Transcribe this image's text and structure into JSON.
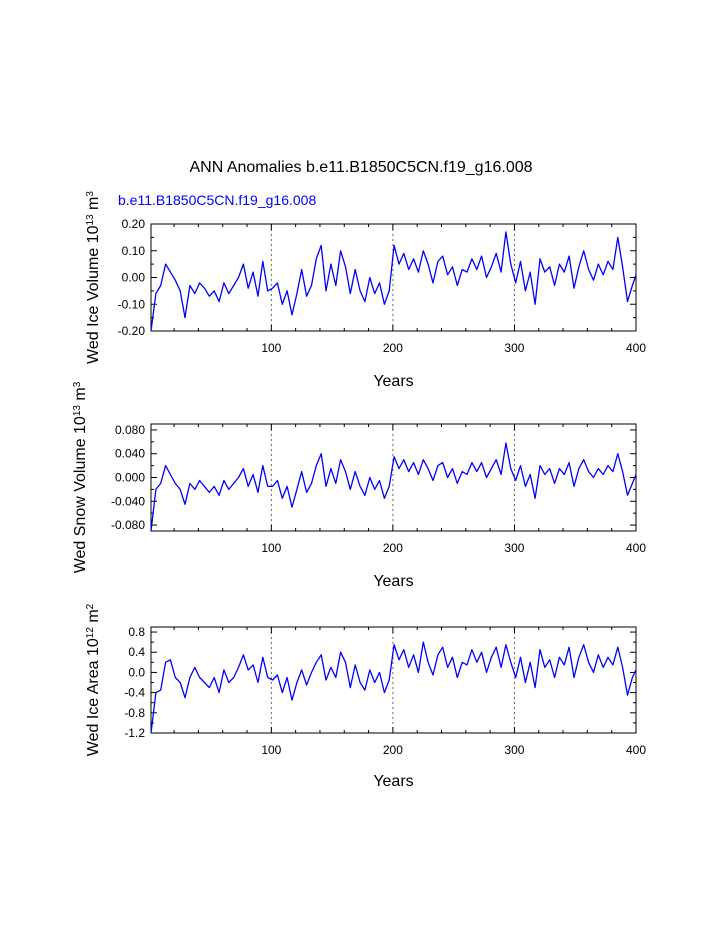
{
  "figure": {
    "title": "ANN Anomalies b.e11.B1850C5CN.f19_g16.008",
    "series_label": "b.e11.B1850C5CN.f19_g16.008",
    "series_color": "#0000ff"
  },
  "chart_data": [
    {
      "type": "line",
      "xlabel": "Years",
      "ylabel_main": "Wed Ice Volume 10",
      "ylabel_exp": "13",
      "ylabel_unit": " m",
      "ylabel_unit_exp": "3",
      "xlim": [
        1,
        400
      ],
      "ylim": [
        -0.2,
        0.2
      ],
      "x_ticks": [
        100,
        200,
        300,
        400
      ],
      "x_tick_labels": [
        "100",
        "200",
        "300",
        "400"
      ],
      "y_ticks": [
        -0.2,
        -0.1,
        0.0,
        0.1,
        0.2
      ],
      "y_tick_labels": [
        "-0.20",
        "-0.10",
        "0.00",
        "0.10",
        "0.20"
      ],
      "vlines": [
        100,
        200,
        300
      ],
      "grid": false,
      "series": [
        {
          "name": "b.e11.B1850C5CN.f19_g16.008",
          "color": "#0000ff",
          "x": [
            1,
            5,
            9,
            13,
            17,
            21,
            25,
            29,
            33,
            37,
            41,
            45,
            49,
            53,
            57,
            61,
            65,
            69,
            73,
            77,
            81,
            85,
            89,
            93,
            97,
            101,
            105,
            109,
            113,
            117,
            121,
            125,
            129,
            133,
            137,
            141,
            145,
            149,
            153,
            157,
            161,
            165,
            169,
            173,
            177,
            181,
            185,
            189,
            193,
            197,
            201,
            205,
            209,
            213,
            217,
            221,
            225,
            229,
            233,
            237,
            241,
            245,
            249,
            253,
            257,
            261,
            265,
            269,
            273,
            277,
            281,
            285,
            289,
            293,
            297,
            301,
            305,
            309,
            313,
            317,
            321,
            325,
            329,
            333,
            337,
            341,
            345,
            349,
            353,
            357,
            361,
            365,
            369,
            373,
            377,
            381,
            385,
            389,
            393,
            397,
            400
          ],
          "y": [
            -0.2,
            -0.06,
            -0.03,
            0.05,
            0.02,
            -0.01,
            -0.05,
            -0.15,
            -0.03,
            -0.06,
            -0.02,
            -0.04,
            -0.07,
            -0.05,
            -0.09,
            -0.02,
            -0.06,
            -0.03,
            0.0,
            0.05,
            -0.04,
            0.02,
            -0.07,
            0.06,
            -0.05,
            -0.04,
            -0.02,
            -0.1,
            -0.05,
            -0.14,
            -0.06,
            0.03,
            -0.07,
            -0.03,
            0.07,
            0.12,
            -0.05,
            0.05,
            -0.03,
            0.1,
            0.04,
            -0.06,
            0.03,
            -0.05,
            -0.09,
            0.0,
            -0.06,
            -0.02,
            -0.1,
            -0.05,
            0.12,
            0.05,
            0.09,
            0.03,
            0.07,
            0.02,
            0.1,
            0.05,
            -0.02,
            0.06,
            0.08,
            0.01,
            0.04,
            -0.03,
            0.03,
            0.02,
            0.07,
            0.03,
            0.08,
            0.0,
            0.04,
            0.09,
            0.02,
            0.17,
            0.05,
            -0.02,
            0.06,
            -0.05,
            0.02,
            -0.1,
            0.07,
            0.02,
            0.04,
            -0.03,
            0.05,
            0.02,
            0.08,
            -0.04,
            0.04,
            0.1,
            0.03,
            -0.01,
            0.05,
            0.01,
            0.06,
            0.03,
            0.15,
            0.04,
            -0.09,
            -0.03,
            0.01
          ]
        }
      ]
    },
    {
      "type": "line",
      "xlabel": "Years",
      "ylabel_main": "Wed Snow Volume 10",
      "ylabel_exp": "13",
      "ylabel_unit": " m",
      "ylabel_unit_exp": "3",
      "xlim": [
        1,
        400
      ],
      "ylim": [
        -0.09,
        0.09
      ],
      "x_ticks": [
        100,
        200,
        300,
        400
      ],
      "x_tick_labels": [
        "100",
        "200",
        "300",
        "400"
      ],
      "y_ticks": [
        -0.08,
        -0.04,
        0.0,
        0.04,
        0.08
      ],
      "y_tick_labels": [
        "-0.080",
        "-0.040",
        "0.000",
        "0.040",
        "0.080"
      ],
      "vlines": [
        100,
        200,
        300
      ],
      "grid": false,
      "series": [
        {
          "name": "b.e11.B1850C5CN.f19_g16.008",
          "color": "#0000ff",
          "x": [
            1,
            5,
            9,
            13,
            17,
            21,
            25,
            29,
            33,
            37,
            41,
            45,
            49,
            53,
            57,
            61,
            65,
            69,
            73,
            77,
            81,
            85,
            89,
            93,
            97,
            101,
            105,
            109,
            113,
            117,
            121,
            125,
            129,
            133,
            137,
            141,
            145,
            149,
            153,
            157,
            161,
            165,
            169,
            173,
            177,
            181,
            185,
            189,
            193,
            197,
            201,
            205,
            209,
            213,
            217,
            221,
            225,
            229,
            233,
            237,
            241,
            245,
            249,
            253,
            257,
            261,
            265,
            269,
            273,
            277,
            281,
            285,
            289,
            293,
            297,
            301,
            305,
            309,
            313,
            317,
            321,
            325,
            329,
            333,
            337,
            341,
            345,
            349,
            353,
            357,
            361,
            365,
            369,
            373,
            377,
            381,
            385,
            389,
            393,
            397,
            400
          ],
          "y": [
            -0.09,
            -0.02,
            -0.01,
            0.02,
            0.005,
            -0.01,
            -0.02,
            -0.045,
            -0.01,
            -0.02,
            -0.005,
            -0.015,
            -0.025,
            -0.015,
            -0.03,
            -0.005,
            -0.02,
            -0.01,
            0.0,
            0.015,
            -0.015,
            0.005,
            -0.025,
            0.02,
            -0.015,
            -0.015,
            -0.005,
            -0.035,
            -0.015,
            -0.05,
            -0.02,
            0.01,
            -0.025,
            -0.01,
            0.02,
            0.04,
            -0.015,
            0.015,
            -0.01,
            0.03,
            0.01,
            -0.02,
            0.01,
            -0.015,
            -0.03,
            0.0,
            -0.02,
            -0.005,
            -0.035,
            -0.015,
            0.035,
            0.015,
            0.03,
            0.01,
            0.025,
            0.005,
            0.03,
            0.015,
            -0.005,
            0.02,
            0.025,
            0.0,
            0.015,
            -0.01,
            0.01,
            0.005,
            0.025,
            0.01,
            0.025,
            0.0,
            0.015,
            0.03,
            0.005,
            0.058,
            0.015,
            -0.005,
            0.02,
            -0.015,
            0.005,
            -0.035,
            0.02,
            0.005,
            0.015,
            -0.01,
            0.015,
            0.005,
            0.025,
            -0.015,
            0.015,
            0.03,
            0.01,
            0.0,
            0.015,
            0.005,
            0.02,
            0.01,
            0.04,
            0.01,
            -0.03,
            -0.01,
            0.005
          ]
        }
      ]
    },
    {
      "type": "line",
      "xlabel": "Years",
      "ylabel_main": "Wed Ice Area 10",
      "ylabel_exp": "12",
      "ylabel_unit": " m",
      "ylabel_unit_exp": "2",
      "xlim": [
        1,
        400
      ],
      "ylim": [
        -1.2,
        0.9
      ],
      "x_ticks": [
        100,
        200,
        300,
        400
      ],
      "x_tick_labels": [
        "100",
        "200",
        "300",
        "400"
      ],
      "y_ticks": [
        -1.2,
        -0.8,
        -0.4,
        0.0,
        0.4,
        0.8
      ],
      "y_tick_labels": [
        "-1.2",
        "-0.8",
        "-0.4",
        "0.0",
        "0.4",
        "0.8"
      ],
      "vlines": [
        100,
        200,
        300
      ],
      "grid": false,
      "series": [
        {
          "name": "b.e11.B1850C5CN.f19_g16.008",
          "color": "#0000ff",
          "x": [
            1,
            5,
            9,
            13,
            17,
            21,
            25,
            29,
            33,
            37,
            41,
            45,
            49,
            53,
            57,
            61,
            65,
            69,
            73,
            77,
            81,
            85,
            89,
            93,
            97,
            101,
            105,
            109,
            113,
            117,
            121,
            125,
            129,
            133,
            137,
            141,
            145,
            149,
            153,
            157,
            161,
            165,
            169,
            173,
            177,
            181,
            185,
            189,
            193,
            197,
            201,
            205,
            209,
            213,
            217,
            221,
            225,
            229,
            233,
            237,
            241,
            245,
            249,
            253,
            257,
            261,
            265,
            269,
            273,
            277,
            281,
            285,
            289,
            293,
            297,
            301,
            305,
            309,
            313,
            317,
            321,
            325,
            329,
            333,
            337,
            341,
            345,
            349,
            353,
            357,
            361,
            365,
            369,
            373,
            377,
            381,
            385,
            389,
            393,
            397,
            400
          ],
          "y": [
            -1.2,
            -0.4,
            -0.35,
            0.2,
            0.25,
            -0.1,
            -0.2,
            -0.5,
            -0.1,
            0.1,
            -0.1,
            -0.2,
            -0.3,
            -0.1,
            -0.4,
            0.05,
            -0.2,
            -0.1,
            0.1,
            0.35,
            0.05,
            0.15,
            -0.2,
            0.3,
            -0.1,
            -0.15,
            -0.05,
            -0.4,
            -0.1,
            -0.55,
            -0.2,
            0.05,
            -0.25,
            0.0,
            0.2,
            0.35,
            -0.15,
            0.1,
            -0.1,
            0.4,
            0.2,
            -0.3,
            0.15,
            -0.2,
            -0.35,
            0.05,
            -0.2,
            0.0,
            -0.4,
            -0.15,
            0.55,
            0.25,
            0.45,
            0.1,
            0.35,
            0.0,
            0.6,
            0.2,
            -0.05,
            0.35,
            0.5,
            0.1,
            0.3,
            -0.1,
            0.2,
            0.15,
            0.45,
            0.2,
            0.4,
            0.0,
            0.3,
            0.5,
            0.1,
            0.55,
            0.2,
            -0.1,
            0.3,
            -0.2,
            0.2,
            -0.3,
            0.45,
            0.1,
            0.25,
            -0.1,
            0.3,
            0.15,
            0.5,
            -0.1,
            0.3,
            0.55,
            0.2,
            0.0,
            0.35,
            0.1,
            0.3,
            0.15,
            0.5,
            0.1,
            -0.45,
            -0.1,
            0.05
          ]
        }
      ]
    }
  ]
}
